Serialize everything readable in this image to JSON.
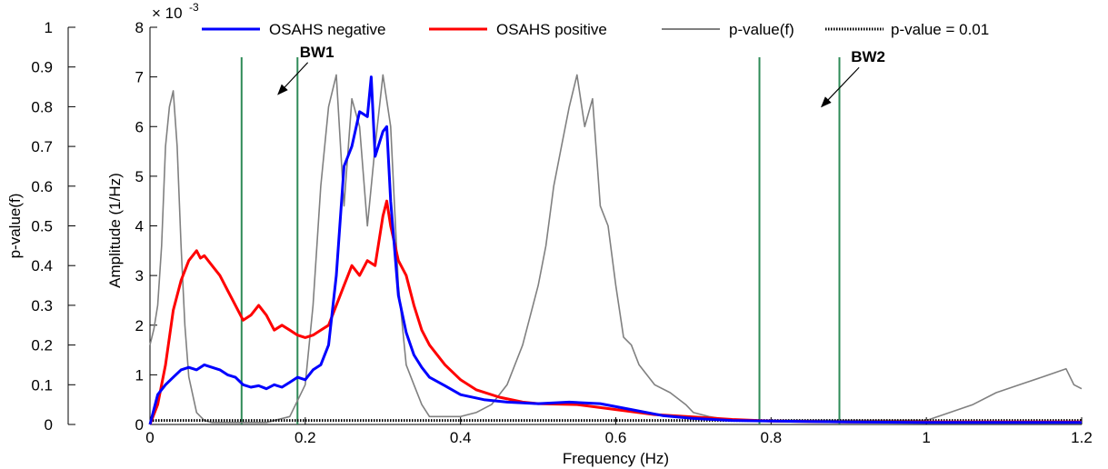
{
  "chart_data": {
    "type": "line",
    "xlabel": "Frequency (Hz)",
    "ylabel": "Amplitude (1/Hz)",
    "y_multiplier": "× 10",
    "y_multiplier_exp": "-3",
    "y2label": "p-value(f)",
    "xlim": [
      0,
      1.2
    ],
    "ylim": [
      0,
      8
    ],
    "y2lim": [
      0,
      1
    ],
    "x_ticks": [
      "0",
      "0.2",
      "0.4",
      "0.6",
      "0.8",
      "1",
      "1.2"
    ],
    "y_ticks": [
      "0",
      "1",
      "2",
      "3",
      "4",
      "5",
      "6",
      "7",
      "8"
    ],
    "y2_ticks": [
      "0",
      "0.1",
      "0.2",
      "0.3",
      "0.4",
      "0.5",
      "0.6",
      "0.7",
      "0.8",
      "0.9",
      "1"
    ],
    "legend_placement": "top",
    "series": [
      {
        "name": "OSAHS negative",
        "color": "#0000ff",
        "x": [
          0,
          0.01,
          0.02,
          0.03,
          0.04,
          0.05,
          0.06,
          0.07,
          0.08,
          0.09,
          0.1,
          0.11,
          0.12,
          0.13,
          0.14,
          0.15,
          0.16,
          0.17,
          0.18,
          0.19,
          0.2,
          0.21,
          0.22,
          0.23,
          0.24,
          0.25,
          0.26,
          0.27,
          0.28,
          0.285,
          0.29,
          0.3,
          0.305,
          0.31,
          0.32,
          0.33,
          0.34,
          0.35,
          0.36,
          0.38,
          0.4,
          0.43,
          0.46,
          0.5,
          0.54,
          0.58,
          0.62,
          0.66,
          0.7,
          0.75,
          0.8,
          0.9,
          1.0,
          1.1,
          1.2
        ],
        "values": [
          0.0,
          0.6,
          0.8,
          0.95,
          1.1,
          1.15,
          1.1,
          1.2,
          1.15,
          1.1,
          1.0,
          0.95,
          0.8,
          0.75,
          0.78,
          0.72,
          0.8,
          0.75,
          0.85,
          0.95,
          0.9,
          1.1,
          1.2,
          1.6,
          3.0,
          5.2,
          5.6,
          6.3,
          6.2,
          7.0,
          5.4,
          5.9,
          6.0,
          4.5,
          2.6,
          1.85,
          1.4,
          1.15,
          0.95,
          0.78,
          0.6,
          0.5,
          0.45,
          0.42,
          0.45,
          0.42,
          0.3,
          0.18,
          0.12,
          0.08,
          0.07,
          0.05,
          0.04,
          0.04,
          0.04
        ]
      },
      {
        "name": "OSAHS positive",
        "color": "#ff0000",
        "x": [
          0,
          0.01,
          0.02,
          0.03,
          0.04,
          0.05,
          0.06,
          0.065,
          0.07,
          0.08,
          0.09,
          0.1,
          0.11,
          0.12,
          0.13,
          0.14,
          0.15,
          0.16,
          0.17,
          0.18,
          0.19,
          0.2,
          0.21,
          0.22,
          0.23,
          0.24,
          0.25,
          0.26,
          0.27,
          0.28,
          0.29,
          0.3,
          0.305,
          0.31,
          0.32,
          0.33,
          0.34,
          0.35,
          0.36,
          0.38,
          0.4,
          0.42,
          0.45,
          0.48,
          0.5,
          0.55,
          0.6,
          0.65,
          0.7,
          0.75,
          0.8,
          0.9,
          1.0,
          1.1,
          1.2
        ],
        "values": [
          0.0,
          0.4,
          1.2,
          2.3,
          2.9,
          3.3,
          3.5,
          3.35,
          3.4,
          3.2,
          3.0,
          2.7,
          2.4,
          2.1,
          2.2,
          2.4,
          2.2,
          1.9,
          2.0,
          1.9,
          1.8,
          1.75,
          1.8,
          1.9,
          2.0,
          2.4,
          2.8,
          3.2,
          3.0,
          3.3,
          3.2,
          4.2,
          4.5,
          4.0,
          3.3,
          3.0,
          2.4,
          1.9,
          1.6,
          1.2,
          0.9,
          0.7,
          0.55,
          0.45,
          0.42,
          0.4,
          0.3,
          0.2,
          0.15,
          0.1,
          0.07,
          0.05,
          0.05,
          0.05,
          0.05
        ]
      },
      {
        "name": "p-value(f)",
        "color": "#808080",
        "axis": "right",
        "x": [
          0,
          0.005,
          0.01,
          0.015,
          0.02,
          0.025,
          0.03,
          0.035,
          0.04,
          0.045,
          0.05,
          0.06,
          0.07,
          0.08,
          0.1,
          0.12,
          0.15,
          0.18,
          0.2,
          0.21,
          0.22,
          0.23,
          0.24,
          0.25,
          0.26,
          0.27,
          0.28,
          0.29,
          0.3,
          0.31,
          0.32,
          0.33,
          0.34,
          0.35,
          0.36,
          0.38,
          0.4,
          0.42,
          0.44,
          0.46,
          0.48,
          0.5,
          0.51,
          0.52,
          0.53,
          0.54,
          0.55,
          0.56,
          0.57,
          0.58,
          0.59,
          0.6,
          0.61,
          0.62,
          0.63,
          0.65,
          0.67,
          0.69,
          0.7,
          0.72,
          0.75,
          0.8,
          0.85,
          0.9,
          0.95,
          1.0,
          1.03,
          1.06,
          1.09,
          1.12,
          1.15,
          1.18,
          1.19,
          1.2
        ],
        "values": [
          0.2,
          0.24,
          0.3,
          0.45,
          0.7,
          0.8,
          0.84,
          0.7,
          0.45,
          0.25,
          0.12,
          0.03,
          0.01,
          0.005,
          0.005,
          0.005,
          0.005,
          0.02,
          0.1,
          0.3,
          0.6,
          0.8,
          0.88,
          0.55,
          0.82,
          0.75,
          0.5,
          0.7,
          0.88,
          0.75,
          0.35,
          0.15,
          0.1,
          0.05,
          0.02,
          0.02,
          0.02,
          0.03,
          0.05,
          0.1,
          0.2,
          0.35,
          0.45,
          0.6,
          0.7,
          0.8,
          0.88,
          0.75,
          0.82,
          0.55,
          0.5,
          0.35,
          0.22,
          0.2,
          0.15,
          0.1,
          0.08,
          0.05,
          0.03,
          0.02,
          0.01,
          0.01,
          0.01,
          0.01,
          0.01,
          0.01,
          0.03,
          0.05,
          0.08,
          0.1,
          0.12,
          0.14,
          0.1,
          0.09
        ]
      },
      {
        "name": "p-value = 0.01",
        "color": "#000000",
        "axis": "right",
        "style": "dotted",
        "x": [
          0,
          1.2
        ],
        "values": [
          0.01,
          0.01
        ]
      }
    ],
    "vlines": {
      "color": "#2e8b57",
      "x": [
        0.118,
        0.19,
        0.785,
        0.888
      ]
    },
    "annotations": [
      {
        "text": "BW1",
        "x": 0.215,
        "y": 7.4,
        "arrow_to_x": 0.165,
        "arrow_to_y": 6.65
      },
      {
        "text": "BW2",
        "x": 0.925,
        "y": 7.3,
        "arrow_to_x": 0.865,
        "arrow_to_y": 6.4
      }
    ]
  }
}
